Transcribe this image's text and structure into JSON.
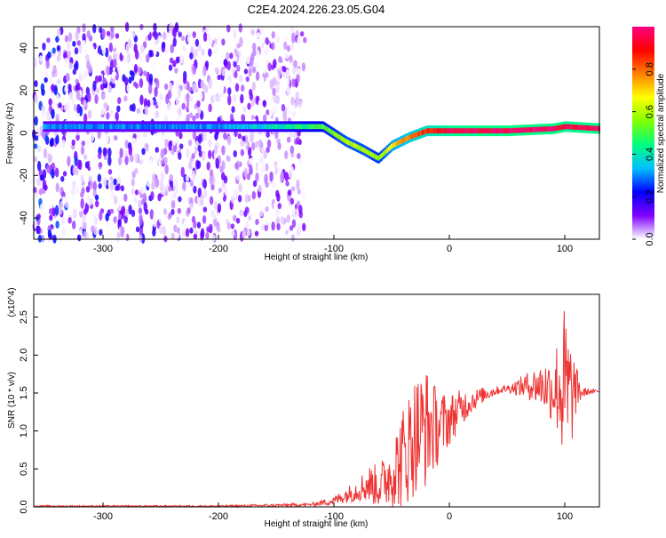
{
  "title": "C2E4.2024.226.23.05.G04",
  "chart_data": [
    {
      "type": "heatmap",
      "xlabel": "Height of straight line (km)",
      "ylabel": "Frequency (Hz)",
      "xlim": [
        -360,
        130
      ],
      "ylim": [
        -50,
        50
      ],
      "xticks": [
        "-300",
        "-200",
        "-100",
        "0",
        "100"
      ],
      "yticks": [
        "-40",
        "-20",
        "0",
        "20",
        "40"
      ],
      "xtick_values": [
        -300,
        -200,
        -100,
        0,
        100
      ],
      "ytick_values": [
        -40,
        -20,
        0,
        20,
        40
      ],
      "colorbar": {
        "label": "Normalized spectral amplitude",
        "range": [
          0,
          1
        ],
        "ticks": [
          "0.0",
          "0.2",
          "0.4",
          "0.6",
          "0.8"
        ],
        "tick_values": [
          0,
          0.2,
          0.4,
          0.6,
          0.8
        ],
        "colors": [
          "#ffffff",
          "#8000ff",
          "#0000ff",
          "#00c0ff",
          "#00ff80",
          "#80ff00",
          "#ffff00",
          "#ff8000",
          "#ff0000",
          "#ff0080"
        ]
      },
      "ridge": {
        "name": "",
        "x": [
          -350,
          -300,
          -250,
          -200,
          -150,
          -110,
          -90,
          -75,
          -62,
          -50,
          -35,
          -20,
          0,
          50,
          90,
          100,
          130
        ],
        "y": [
          3,
          3,
          3,
          3,
          3,
          3,
          -4,
          -8,
          -12,
          -6,
          -2,
          1,
          1,
          1,
          2,
          3,
          2
        ],
        "amplitude": [
          0.3,
          0.3,
          0.3,
          0.3,
          0.4,
          0.5,
          0.6,
          0.6,
          0.55,
          0.7,
          0.8,
          0.85,
          0.95,
          0.98,
          0.98,
          0.95,
          0.98
        ]
      },
      "noise_region": {
        "x_from": -360,
        "x_to": -125
      }
    },
    {
      "type": "line",
      "xlabel": "Height of straight line (km)",
      "ylabel": "SNR (10 * v/v)",
      "multiplier": "(x10^4)",
      "xlim": [
        -360,
        130
      ],
      "ylim": [
        0,
        2.8
      ],
      "xticks": [
        "-300",
        "-200",
        "-100",
        "0",
        "100"
      ],
      "yticks": [
        "0.0",
        "0.5",
        "1.0",
        "1.5",
        "2.0",
        "2.5"
      ],
      "xtick_values": [
        -300,
        -200,
        -100,
        0,
        100
      ],
      "ytick_values": [
        0,
        0.5,
        1.0,
        1.5,
        2.0,
        2.5
      ],
      "color": "#ee3333",
      "series": [
        {
          "x": [
            -360,
            -300,
            -250,
            -200,
            -150,
            -120,
            -100,
            -90,
            -80,
            -70,
            -60,
            -50,
            -40,
            -30,
            -20,
            -10,
            0,
            10,
            20,
            30,
            40,
            50,
            60,
            70,
            80,
            90,
            95,
            100,
            105,
            110,
            115,
            120,
            130
          ],
          "y": [
            0.01,
            0.01,
            0.01,
            0.01,
            0.02,
            0.03,
            0.08,
            0.15,
            0.22,
            0.3,
            0.28,
            0.45,
            0.65,
            0.95,
            1.05,
            1.05,
            1.15,
            1.3,
            1.4,
            1.48,
            1.53,
            1.56,
            1.58,
            1.6,
            1.6,
            1.55,
            1.6,
            1.5,
            1.45,
            1.55,
            1.5,
            1.52,
            1.52
          ],
          "envelope": [
            0.01,
            0.01,
            0.01,
            0.01,
            0.02,
            0.02,
            0.06,
            0.1,
            0.15,
            0.25,
            0.3,
            0.45,
            0.7,
            0.8,
            0.8,
            0.5,
            0.35,
            0.25,
            0.15,
            0.1,
            0.06,
            0.05,
            0.12,
            0.2,
            0.3,
            0.45,
            0.75,
            1.2,
            0.8,
            0.3,
            0.08,
            0.04,
            0.02
          ]
        }
      ]
    }
  ]
}
